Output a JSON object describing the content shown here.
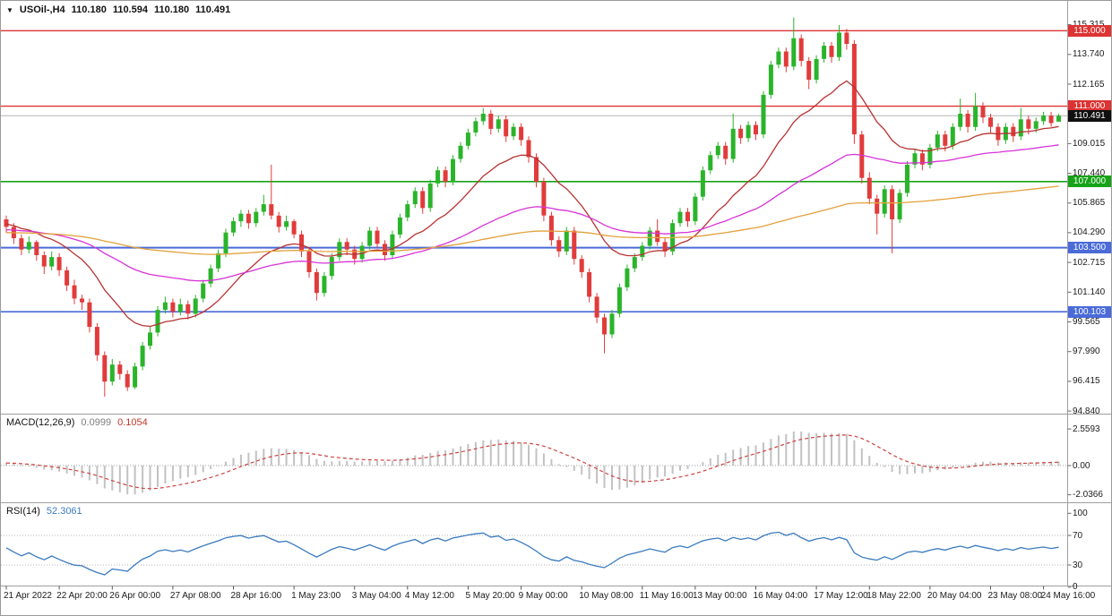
{
  "icons": {
    "expand_arrow": "▼"
  },
  "chart_data": [
    {
      "type": "candlestick",
      "title": "USOil-,H4",
      "symbol": "USOil-",
      "timeframe": "H4",
      "ohlc_current": {
        "open": "110.180",
        "high": "110.594",
        "low": "110.180",
        "close": "110.491"
      },
      "colors": {
        "up": "#2ab42a",
        "down": "#e13b3b"
      },
      "moving_averages": [
        {
          "name": "ma-fast",
          "period": 16,
          "color": "#b83232"
        },
        {
          "name": "ma-mid",
          "period": 55,
          "color": "#d733d7"
        },
        {
          "name": "ma-slow",
          "period": 160,
          "color": "#e2a13c"
        }
      ],
      "levels": [
        {
          "price": 115.0,
          "label": "115.000",
          "color": "#dd3333",
          "width": 1.4
        },
        {
          "price": 111.0,
          "label": "111.000",
          "color": "#dd3333",
          "width": 1.4
        },
        {
          "price": 107.0,
          "label": "107.000",
          "color": "#17a317",
          "width": 1.6
        },
        {
          "price": 103.5,
          "label": "103.500",
          "color": "#4a6bd8",
          "width": 2
        },
        {
          "price": 100.103,
          "label": "100.103",
          "color": "#4a6bd8",
          "width": 1.6
        }
      ],
      "current_price": {
        "price": 110.491,
        "label": "110.491",
        "line_color": "#b5b5b5",
        "bg": "#101010"
      },
      "y_axis_ticks": [
        {
          "price": 115.315,
          "label": "115.315"
        },
        {
          "price": 113.74,
          "label": "113.740"
        },
        {
          "price": 112.165,
          "label": "112.165"
        },
        {
          "price": 109.015,
          "label": "109.015"
        },
        {
          "price": 107.44,
          "label": "107.440"
        },
        {
          "price": 105.865,
          "label": "105.865"
        },
        {
          "price": 104.29,
          "label": "104.290"
        },
        {
          "price": 102.715,
          "label": "102.715"
        },
        {
          "price": 101.14,
          "label": "101.140"
        },
        {
          "price": 99.565,
          "label": "99.565"
        },
        {
          "price": 97.99,
          "label": "97.990"
        },
        {
          "price": 96.415,
          "label": "96.415"
        },
        {
          "price": 94.84,
          "label": "94.840"
        }
      ],
      "x_axis_labels": [
        {
          "index": 0,
          "label": "21 Apr 2022"
        },
        {
          "index": 7,
          "label": "22 Apr 20:00"
        },
        {
          "index": 14,
          "label": "26 Apr 00:00"
        },
        {
          "index": 22,
          "label": "27 Apr 08:00"
        },
        {
          "index": 30,
          "label": "28 Apr 16:00"
        },
        {
          "index": 38,
          "label": "1 May 23:00"
        },
        {
          "index": 46,
          "label": "3 May 04:00"
        },
        {
          "index": 53,
          "label": "4 May 12:00"
        },
        {
          "index": 61,
          "label": "5 May 20:00"
        },
        {
          "index": 68,
          "label": "9 May 00:00"
        },
        {
          "index": 76,
          "label": "10 May 08:00"
        },
        {
          "index": 84,
          "label": "11 May 16:00"
        },
        {
          "index": 91,
          "label": "13 May 00:00"
        },
        {
          "index": 99,
          "label": "16 May 04:00"
        },
        {
          "index": 107,
          "label": "17 May 12:00"
        },
        {
          "index": 114,
          "label": "18 May 22:00"
        },
        {
          "index": 122,
          "label": "20 May 04:00"
        },
        {
          "index": 130,
          "label": "23 May 08:00"
        },
        {
          "index": 137,
          "label": "24 May 16:00"
        }
      ],
      "candles": [
        [
          105.0,
          105.2,
          104.3,
          104.6
        ],
        [
          104.6,
          104.8,
          103.7,
          104.0
        ],
        [
          104.0,
          104.2,
          103.1,
          103.4
        ],
        [
          103.4,
          104.1,
          103.2,
          103.8
        ],
        [
          103.8,
          103.9,
          102.8,
          103.1
        ],
        [
          103.1,
          103.3,
          102.1,
          102.5
        ],
        [
          102.5,
          103.3,
          102.3,
          103.0
        ],
        [
          103.0,
          103.2,
          102.0,
          102.3
        ],
        [
          102.3,
          102.5,
          101.2,
          101.5
        ],
        [
          101.5,
          101.8,
          100.5,
          100.8
        ],
        [
          100.8,
          101.0,
          100.2,
          100.6
        ],
        [
          100.6,
          100.8,
          99.0,
          99.3
        ],
        [
          99.3,
          99.5,
          97.5,
          97.8
        ],
        [
          97.8,
          98.0,
          95.6,
          96.4
        ],
        [
          96.4,
          97.6,
          96.2,
          97.3
        ],
        [
          97.3,
          97.5,
          96.5,
          96.8
        ],
        [
          96.8,
          97.0,
          95.9,
          96.1
        ],
        [
          96.1,
          97.4,
          96.0,
          97.2
        ],
        [
          97.2,
          98.5,
          97.0,
          98.3
        ],
        [
          98.3,
          99.3,
          98.1,
          99.0
        ],
        [
          99.0,
          100.4,
          98.8,
          100.2
        ],
        [
          100.2,
          100.9,
          100.0,
          100.6
        ],
        [
          100.6,
          100.8,
          99.8,
          100.1
        ],
        [
          100.1,
          100.8,
          99.9,
          100.5
        ],
        [
          100.5,
          100.7,
          99.7,
          100.0
        ],
        [
          100.0,
          101.0,
          99.8,
          100.8
        ],
        [
          100.8,
          101.8,
          100.6,
          101.6
        ],
        [
          101.6,
          102.6,
          101.4,
          102.4
        ],
        [
          102.4,
          103.4,
          102.2,
          103.2
        ],
        [
          103.2,
          104.5,
          103.0,
          104.3
        ],
        [
          104.3,
          105.1,
          104.1,
          104.9
        ],
        [
          104.9,
          105.5,
          104.6,
          105.3
        ],
        [
          105.3,
          105.5,
          104.5,
          104.8
        ],
        [
          104.8,
          105.6,
          104.6,
          105.4
        ],
        [
          105.4,
          106.3,
          105.2,
          105.8
        ],
        [
          105.8,
          107.9,
          105.0,
          105.2
        ],
        [
          105.2,
          105.4,
          104.3,
          104.6
        ],
        [
          104.6,
          105.2,
          104.4,
          104.9
        ],
        [
          104.9,
          105.0,
          104.0,
          104.2
        ],
        [
          104.2,
          104.4,
          103.0,
          103.3
        ],
        [
          103.3,
          103.5,
          101.9,
          102.2
        ],
        [
          102.2,
          102.4,
          100.7,
          101.1
        ],
        [
          101.1,
          102.2,
          100.9,
          102.0
        ],
        [
          102.0,
          103.2,
          101.8,
          103.0
        ],
        [
          103.0,
          104.0,
          102.8,
          103.8
        ],
        [
          103.8,
          104.0,
          103.1,
          103.4
        ],
        [
          103.4,
          103.6,
          102.6,
          102.9
        ],
        [
          102.9,
          103.8,
          102.7,
          103.6
        ],
        [
          103.6,
          104.6,
          103.4,
          104.4
        ],
        [
          104.4,
          104.6,
          103.5,
          103.7
        ],
        [
          103.7,
          103.9,
          102.8,
          103.1
        ],
        [
          103.1,
          104.4,
          102.9,
          104.2
        ],
        [
          104.2,
          105.3,
          104.0,
          105.1
        ],
        [
          105.1,
          106.0,
          104.9,
          105.8
        ],
        [
          105.8,
          106.7,
          105.6,
          106.5
        ],
        [
          106.5,
          106.7,
          105.3,
          105.6
        ],
        [
          105.6,
          107.1,
          105.4,
          106.9
        ],
        [
          106.9,
          107.8,
          106.7,
          107.6
        ],
        [
          107.6,
          107.8,
          106.7,
          107.0
        ],
        [
          107.0,
          108.4,
          106.8,
          108.2
        ],
        [
          108.2,
          109.1,
          108.0,
          108.9
        ],
        [
          108.9,
          109.8,
          108.7,
          109.6
        ],
        [
          109.6,
          110.4,
          109.4,
          110.2
        ],
        [
          110.2,
          110.9,
          110.0,
          110.6
        ],
        [
          110.6,
          110.8,
          109.5,
          109.8
        ],
        [
          109.8,
          110.5,
          109.6,
          110.3
        ],
        [
          110.3,
          110.5,
          109.1,
          109.4
        ],
        [
          109.4,
          110.1,
          109.2,
          109.9
        ],
        [
          109.9,
          110.1,
          108.9,
          109.2
        ],
        [
          109.2,
          109.4,
          108.0,
          108.3
        ],
        [
          108.3,
          108.5,
          106.7,
          107.0
        ],
        [
          107.0,
          107.2,
          104.9,
          105.2
        ],
        [
          105.2,
          105.4,
          103.6,
          103.9
        ],
        [
          103.9,
          104.1,
          103.0,
          103.3
        ],
        [
          103.3,
          104.6,
          103.1,
          104.4
        ],
        [
          104.4,
          104.6,
          102.6,
          102.9
        ],
        [
          102.9,
          103.1,
          101.9,
          102.2
        ],
        [
          102.2,
          102.4,
          100.6,
          100.9
        ],
        [
          100.9,
          101.1,
          99.5,
          99.8
        ],
        [
          99.8,
          100.0,
          97.9,
          98.9
        ],
        [
          98.9,
          100.2,
          98.7,
          100.0
        ],
        [
          100.0,
          101.6,
          99.8,
          101.4
        ],
        [
          101.4,
          102.6,
          101.2,
          102.4
        ],
        [
          102.4,
          103.2,
          102.2,
          103.0
        ],
        [
          103.0,
          103.8,
          102.8,
          103.6
        ],
        [
          103.6,
          104.6,
          103.4,
          104.4
        ],
        [
          104.4,
          105.0,
          103.6,
          103.8
        ],
        [
          103.8,
          104.0,
          103.0,
          103.3
        ],
        [
          103.3,
          105.0,
          103.1,
          104.8
        ],
        [
          104.8,
          105.6,
          104.6,
          105.4
        ],
        [
          105.4,
          105.6,
          104.6,
          104.9
        ],
        [
          104.9,
          106.4,
          104.7,
          106.2
        ],
        [
          106.2,
          107.8,
          106.0,
          107.6
        ],
        [
          107.6,
          108.6,
          107.4,
          108.4
        ],
        [
          108.4,
          109.1,
          108.2,
          108.9
        ],
        [
          108.9,
          109.1,
          107.9,
          108.2
        ],
        [
          108.2,
          110.6,
          108.0,
          109.8
        ],
        [
          109.8,
          110.0,
          109.0,
          109.3
        ],
        [
          109.3,
          110.2,
          109.1,
          110.0
        ],
        [
          110.0,
          110.2,
          109.2,
          109.5
        ],
        [
          109.5,
          111.8,
          109.3,
          111.6
        ],
        [
          111.6,
          113.4,
          111.4,
          113.2
        ],
        [
          113.2,
          114.1,
          113.0,
          113.9
        ],
        [
          113.9,
          114.1,
          112.8,
          113.1
        ],
        [
          113.1,
          115.7,
          112.9,
          114.6
        ],
        [
          114.6,
          114.8,
          113.1,
          113.4
        ],
        [
          113.4,
          113.6,
          111.9,
          112.4
        ],
        [
          112.4,
          113.7,
          112.2,
          113.5
        ],
        [
          113.5,
          114.4,
          113.3,
          114.2
        ],
        [
          114.2,
          114.4,
          113.3,
          113.6
        ],
        [
          113.6,
          115.3,
          113.4,
          114.9
        ],
        [
          114.9,
          115.1,
          114.0,
          114.3
        ],
        [
          114.3,
          114.5,
          109.0,
          109.5
        ],
        [
          109.5,
          109.7,
          106.9,
          107.2
        ],
        [
          107.2,
          107.5,
          105.8,
          106.1
        ],
        [
          106.1,
          106.3,
          104.2,
          105.3
        ],
        [
          105.3,
          106.8,
          105.1,
          106.6
        ],
        [
          106.6,
          106.8,
          103.2,
          105.0
        ],
        [
          105.0,
          106.6,
          104.8,
          106.4
        ],
        [
          106.4,
          108.1,
          106.2,
          107.9
        ],
        [
          107.9,
          108.7,
          107.7,
          108.5
        ],
        [
          108.5,
          108.7,
          107.6,
          107.9
        ],
        [
          107.9,
          109.0,
          107.7,
          108.8
        ],
        [
          108.8,
          109.7,
          108.6,
          109.5
        ],
        [
          109.5,
          109.7,
          108.6,
          108.9
        ],
        [
          108.9,
          110.1,
          108.7,
          109.9
        ],
        [
          109.9,
          111.4,
          109.7,
          110.6
        ],
        [
          110.6,
          110.8,
          109.6,
          109.9
        ],
        [
          109.9,
          111.7,
          109.7,
          111.0
        ],
        [
          111.0,
          111.2,
          110.1,
          110.4
        ],
        [
          110.4,
          110.6,
          109.6,
          109.9
        ],
        [
          109.9,
          110.1,
          108.9,
          109.2
        ],
        [
          109.2,
          110.1,
          109.0,
          109.9
        ],
        [
          109.9,
          110.1,
          109.1,
          109.4
        ],
        [
          109.4,
          110.9,
          109.2,
          110.3
        ],
        [
          110.3,
          110.5,
          109.5,
          109.8
        ],
        [
          109.8,
          110.4,
          109.6,
          110.2
        ],
        [
          110.2,
          110.7,
          110.0,
          110.5
        ],
        [
          110.5,
          110.7,
          109.9,
          110.1
        ],
        [
          110.18,
          110.594,
          110.18,
          110.491
        ]
      ]
    },
    {
      "type": "macd",
      "label": "MACD(12,26,9)",
      "params": [
        12,
        26,
        9
      ],
      "current_values": [
        "0.0999",
        "0.1054"
      ],
      "y_ticks": [
        {
          "value": 2.5593,
          "label": "2.5593"
        },
        {
          "value": 0,
          "label": "0.00"
        },
        {
          "value": -2.0366,
          "label": "-2.0366"
        }
      ],
      "colors": {
        "histogram": "#c2c2c2",
        "signal": "#d04040"
      }
    },
    {
      "type": "rsi",
      "label": "RSI(14)",
      "period": 14,
      "current_value": "52.3061",
      "y_ticks": [
        {
          "value": 100,
          "label": "100"
        },
        {
          "value": 70,
          "label": "70"
        },
        {
          "value": 30,
          "label": "30"
        },
        {
          "value": 0,
          "label": "0"
        }
      ],
      "guides": [
        70,
        30
      ],
      "colors": {
        "line": "#3a7abf"
      }
    }
  ]
}
